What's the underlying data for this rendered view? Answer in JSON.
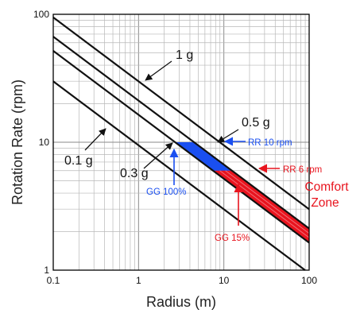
{
  "chart_data": {
    "type": "line",
    "title": "",
    "xlabel": "Radius (m)",
    "ylabel": "Rotation Rate (rpm)",
    "x_scale": "log",
    "y_scale": "log",
    "xlim": [
      0.1,
      100
    ],
    "ylim": [
      1,
      100
    ],
    "grid": true,
    "x_ticks": [
      {
        "value": 0.1,
        "label": "0.1"
      },
      {
        "value": 1,
        "label": "1"
      },
      {
        "value": 10,
        "label": "10"
      },
      {
        "value": 100,
        "label": "100"
      }
    ],
    "y_ticks": [
      {
        "value": 1,
        "label": "1"
      },
      {
        "value": 10,
        "label": "10"
      },
      {
        "value": 100,
        "label": "100"
      }
    ],
    "series": [
      {
        "name": "1 g",
        "g": 1.0,
        "x": [
          0.1,
          100
        ],
        "y": [
          94.6,
          2.99
        ]
      },
      {
        "name": "0.5 g",
        "g": 0.5,
        "x": [
          0.1,
          100
        ],
        "y": [
          66.9,
          2.12
        ]
      },
      {
        "name": "0.3 g",
        "g": 0.3,
        "x": [
          0.1,
          100
        ],
        "y": [
          51.8,
          1.64
        ]
      },
      {
        "name": "0.1 g",
        "g": 0.1,
        "x": [
          0.1,
          100
        ],
        "y": [
          29.9,
          0.95
        ]
      }
    ],
    "regions": [
      {
        "name": "GG 100%",
        "color": "#1a4ff0",
        "bounds": "0.3 g to 0.5 g, rotation rate at most 10 rpm"
      },
      {
        "name": "Comfort Zone",
        "color": "#e8141e",
        "bounds": "0.3 g to 0.5 g, rotation rate at most 6 rpm"
      }
    ],
    "annotations": [
      {
        "text": "1 g",
        "color": "#111111"
      },
      {
        "text": "0.5 g",
        "color": "#111111"
      },
      {
        "text": "0.3 g",
        "color": "#111111"
      },
      {
        "text": "0.1 g",
        "color": "#111111"
      },
      {
        "text": "RR 10 rpm",
        "color": "#1a4ff0"
      },
      {
        "text": "RR 6 rpm",
        "color": "#e8141e"
      },
      {
        "text": "GG 100%",
        "color": "#1a4ff0"
      },
      {
        "text": "GG 15%",
        "color": "#e8141e"
      },
      {
        "text": "Comfort",
        "color": "#e8141e"
      },
      {
        "text": "Zone",
        "color": "#e8141e"
      }
    ]
  }
}
